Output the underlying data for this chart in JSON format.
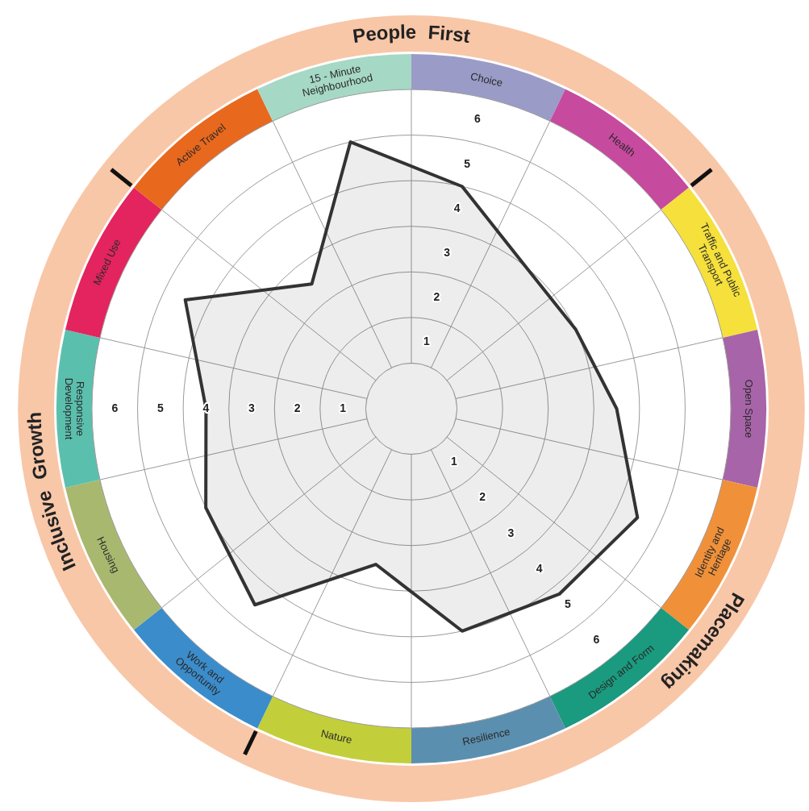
{
  "chart_data": {
    "type": "radar",
    "categories": [
      "Choice",
      "Health",
      "Traffic and Public Transport",
      "Open Space",
      "Identity and Heritage",
      "Design and Form",
      "Resilience",
      "Nature",
      "Work and Opportunity",
      "Housing",
      "Responsive Development",
      "Mixed Use",
      "Active Travel",
      "15 - Minute Neighbourhood"
    ],
    "series": [
      {
        "color": "#333333",
        "values": [
          4,
          3,
          3,
          3.5,
          4.5,
          4.2,
          4,
          2.5,
          4.5,
          4,
          3.5,
          4.5,
          2.5,
          5
        ]
      }
    ],
    "ylim": [
      -1,
      6
    ],
    "yticks": [
      {
        "value": 0.5,
        "label": "1"
      },
      {
        "value": 1.5,
        "label": "2"
      },
      {
        "value": 2.5,
        "label": "3"
      },
      {
        "value": 3.5,
        "label": "4"
      },
      {
        "value": 4.5,
        "label": "5"
      },
      {
        "value": 5.5,
        "label": "6"
      }
    ],
    "grid": true,
    "legend": false,
    "marker": "none",
    "annotations": [
      "People First",
      "Placemaking",
      "Inclusive Growth"
    ]
  }
}
